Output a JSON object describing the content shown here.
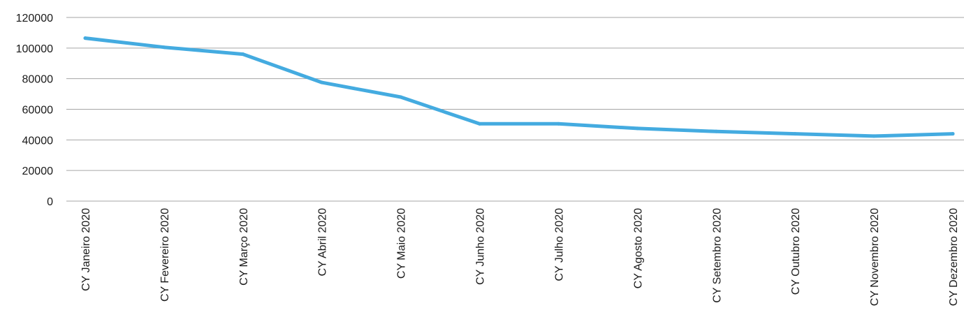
{
  "chart_data": {
    "type": "line",
    "categories": [
      "CY Janeiro 2020",
      "CY Fevereiro 2020",
      "CY Março 2020",
      "CY Abril 2020",
      "CY Maio 2020",
      "CY Junho 2020",
      "CY Julho 2020",
      "CY Agosto 2020",
      "CY Setembro 2020",
      "CY Outubro 2020",
      "CY Novembro 2020",
      "CY Dezembro 2020"
    ],
    "series": [
      {
        "values": [
          106500,
          100500,
          96000,
          77500,
          68000,
          50500,
          50500,
          47500,
          45500,
          44000,
          42500,
          44000
        ],
        "color": "#44abe0"
      }
    ],
    "ylim": [
      0,
      120000
    ],
    "yticks": [
      0,
      20000,
      40000,
      60000,
      80000,
      100000,
      120000
    ],
    "grid": true,
    "legend": "none"
  }
}
